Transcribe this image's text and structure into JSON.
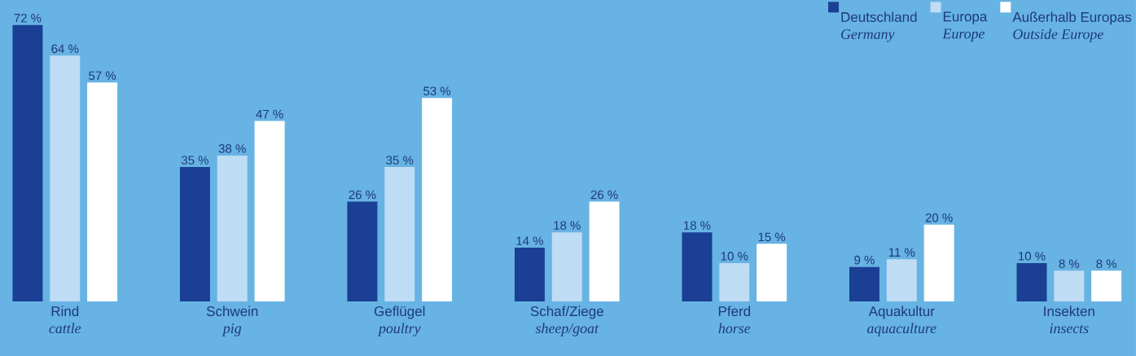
{
  "chart_data": {
    "type": "bar",
    "categories": [
      "Rind\n*cattle*",
      "Schwein\n*pig*",
      "Geflügel\n*poultry*",
      "Schaf/Ziege\n*sheep/goat*",
      "Pferd\n*horse*",
      "Aquakultur\n*aquaculture*",
      "Insekten\n*insects*"
    ],
    "series": [
      {
        "name": "Deutschland\n*Germany*",
        "color": "#1a3f94",
        "values": [
          72,
          35,
          26,
          14,
          18,
          9,
          10
        ],
        "value_labels": [
          "72 %",
          "35 %",
          "26 %",
          "14 %",
          "18 %",
          "9 %",
          "10 %"
        ]
      },
      {
        "name": "Europa\n*Europe*",
        "color": "#bfdcf5",
        "values": [
          64,
          38,
          35,
          18,
          10,
          11,
          8
        ],
        "value_labels": [
          "64 %",
          "38 %",
          "35 %",
          "18 %",
          "10 %",
          "11 %",
          "8 %"
        ]
      },
      {
        "name": "Außerhalb Europas\n*Outside Europe*",
        "color": "#ffffff",
        "values": [
          57,
          47,
          53,
          26,
          15,
          20,
          8
        ],
        "value_labels": [
          "57 %",
          "47 %",
          "53 %",
          "26 %",
          "15 %",
          "20 %",
          "8 %"
        ]
      }
    ],
    "legend": "top right"
  }
}
